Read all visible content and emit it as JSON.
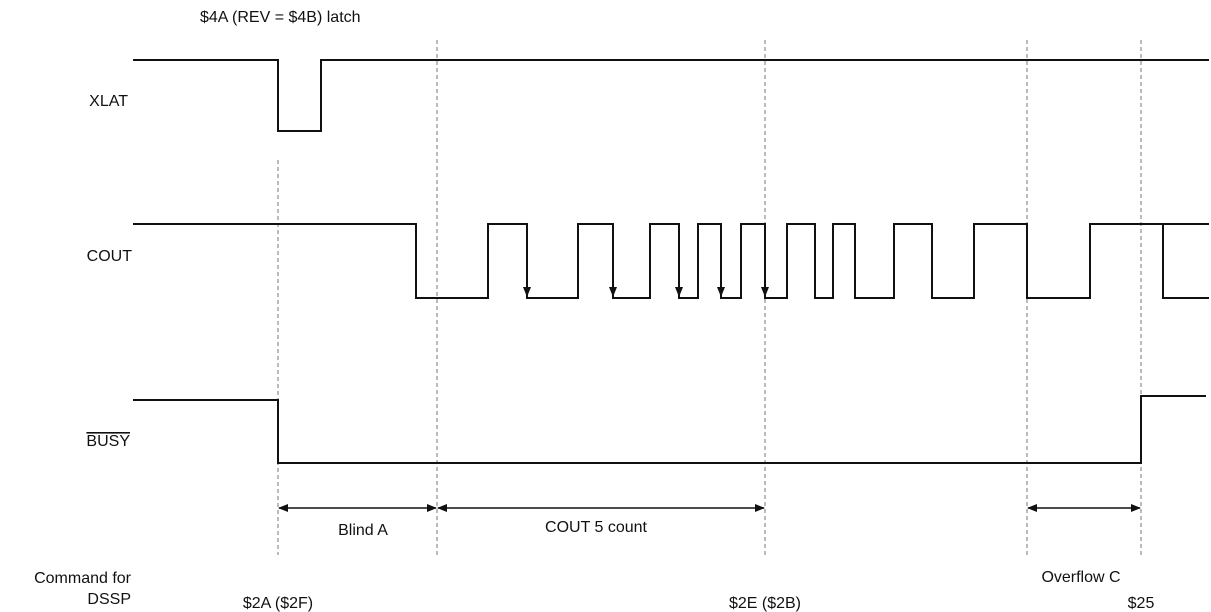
{
  "annotation_top": "$4A (REV = $4B) latch",
  "signals": {
    "xlat": "XLAT",
    "cout": "COUT",
    "busy": "BUSY"
  },
  "intervals": {
    "blind_a": "Blind A",
    "cout_count": "COUT 5 count",
    "overflow_c": "Overflow C"
  },
  "command_label": [
    "Command for",
    "DSSP"
  ],
  "commands": [
    "$2A ($2F)",
    "$2E ($2B)",
    "$25"
  ]
}
